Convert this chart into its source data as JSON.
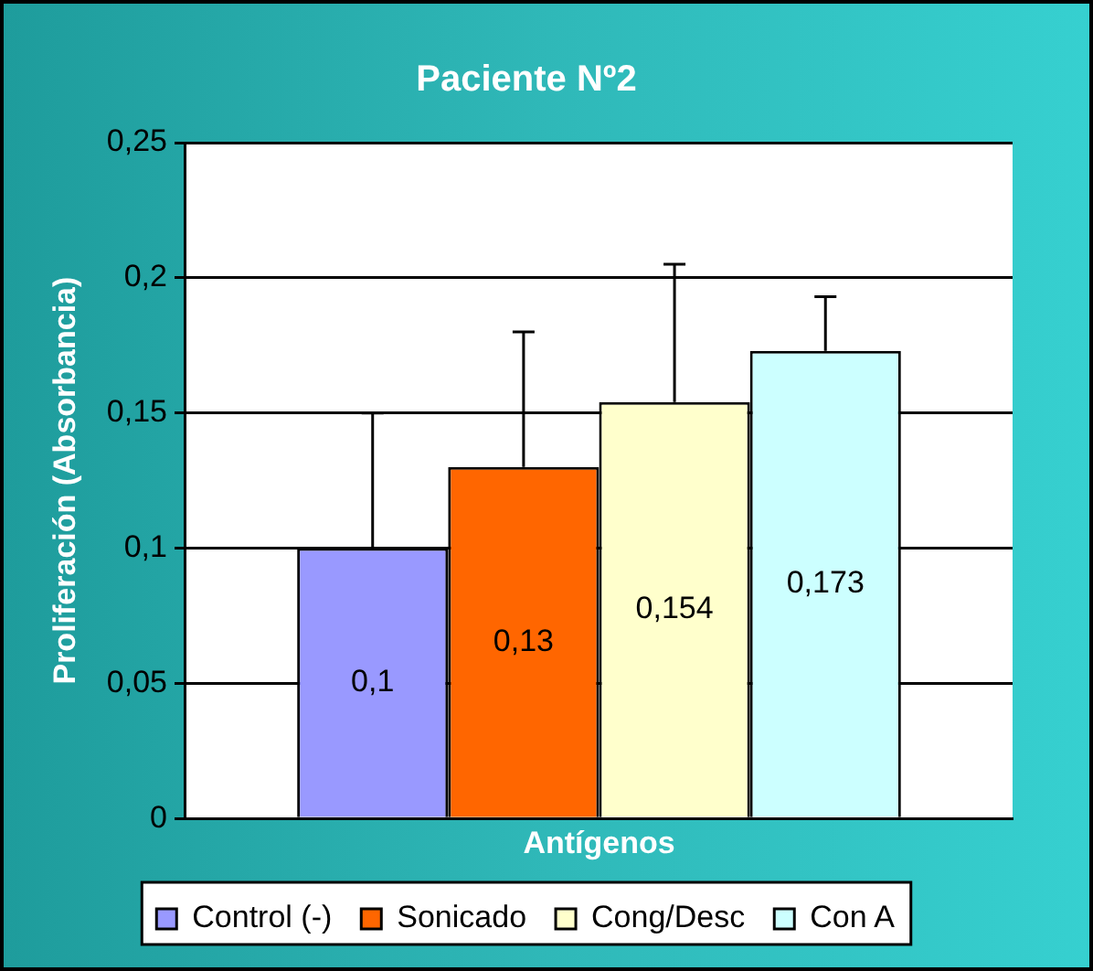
{
  "chart_data": {
    "type": "bar",
    "title": "Paciente Nº2",
    "xlabel": "Antígenos",
    "ylabel": "Proliferación (Absorbancia)",
    "categories": [
      null
    ],
    "series": [
      {
        "name": "Control (-)",
        "color": "#9999ff",
        "values": [
          0.1
        ],
        "value_labels": [
          "0,1"
        ],
        "errors": [
          [
            0.1,
            0.15
          ]
        ]
      },
      {
        "name": "Sonicado",
        "color": "#ff6600",
        "values": [
          0.13
        ],
        "value_labels": [
          "0,13"
        ],
        "errors": [
          [
            0.13,
            0.18
          ]
        ]
      },
      {
        "name": "Cong/Desc",
        "color": "#ffffcc",
        "values": [
          0.154
        ],
        "value_labels": [
          "0,154"
        ],
        "errors": [
          [
            0.154,
            0.205
          ]
        ]
      },
      {
        "name": "Con A",
        "color": "#ccffff",
        "values": [
          0.173
        ],
        "value_labels": [
          "0,173"
        ],
        "errors": [
          [
            0.173,
            0.193
          ]
        ]
      }
    ],
    "ylim": [
      0,
      0.25
    ],
    "yticks": [
      {
        "value": 0,
        "label": "0"
      },
      {
        "value": 0.05,
        "label": "0,05"
      },
      {
        "value": 0.1,
        "label": "0,1"
      },
      {
        "value": 0.15,
        "label": "0,15"
      },
      {
        "value": 0.2,
        "label": "0,2"
      },
      {
        "value": 0.25,
        "label": "0,25"
      }
    ],
    "grid": "y",
    "legend": "bottom"
  }
}
